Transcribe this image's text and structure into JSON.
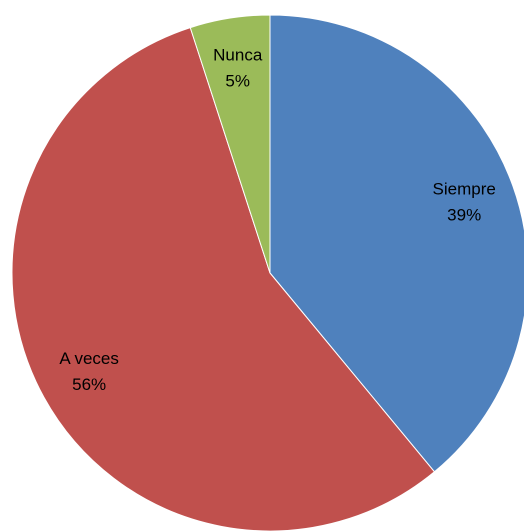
{
  "chart_data": {
    "type": "pie",
    "categories": [
      "Siempre",
      "A veces",
      "Nunca"
    ],
    "values": [
      39,
      56,
      5
    ],
    "value_labels": [
      "39%",
      "56%",
      "5%"
    ],
    "colors": [
      "#4f81bd",
      "#c0504d",
      "#9bbb59"
    ]
  }
}
